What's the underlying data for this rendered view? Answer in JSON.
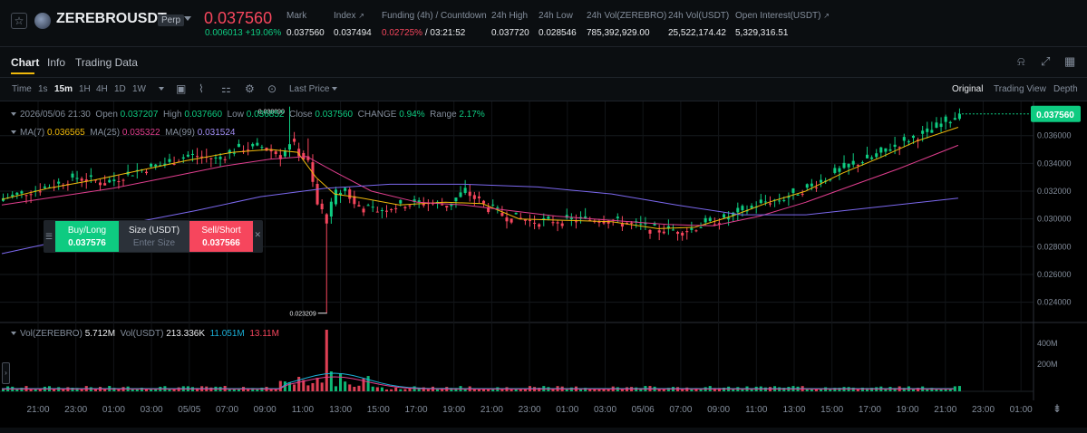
{
  "header": {
    "star_icon": "star-icon",
    "coin_icon": "zerebro-coin-icon",
    "symbol": "ZEREBROUSDT",
    "perp_badge": "Perp",
    "last_price": "0.037560",
    "change": "0.006013 +19.06%",
    "stats": {
      "mark_label": "Mark",
      "mark_value": "0.037560",
      "index_label": "Index",
      "index_value": "0.037494",
      "funding_label": "Funding (4h) / Countdown",
      "funding_rate": "0.02725%",
      "funding_countdown": "/ 03:21:52",
      "high_label": "24h High",
      "high_value": "0.037720",
      "low_label": "24h Low",
      "low_value": "0.028546",
      "vol_coin_label": "24h Vol(ZEREBRO)",
      "vol_coin_value": "785,392,929.00",
      "vol_usdt_label": "24h Vol(USDT)",
      "vol_usdt_value": "25,522,174.42",
      "oi_label": "Open Interest(USDT)",
      "oi_value": "5,329,316.51"
    }
  },
  "tabs": [
    {
      "label": "Chart",
      "active": true
    },
    {
      "label": "Info",
      "active": false
    },
    {
      "label": "Trading Data",
      "active": false
    }
  ],
  "tab_icons": [
    "alert-icon",
    "expand-icon",
    "grid-icon"
  ],
  "toolbar": {
    "intervals": [
      "Time",
      "1s",
      "15m",
      "1H",
      "4H",
      "1D",
      "1W"
    ],
    "active_interval": "15m",
    "price_source": "Last Price",
    "views": [
      "Original",
      "Trading View",
      "Depth"
    ],
    "active_view": "Original"
  },
  "chart_info": {
    "datetime": "2026/05/06 21:30",
    "open_label": "Open",
    "open": "0.037207",
    "high_label": "High",
    "high": "0.037660",
    "low_label": "Low",
    "low": "0.036852",
    "close_label": "Close",
    "close": "0.037560",
    "change_label": "CHANGE",
    "change": "0.94%",
    "range_label": "Range",
    "range": "2.17%"
  },
  "ma": {
    "ma7_label": "MA(7)",
    "ma7": "0.036565",
    "ma25_label": "MA(25)",
    "ma25": "0.035322",
    "ma99_label": "MA(99)",
    "ma99": "0.031524"
  },
  "volume": {
    "label": "Vol(ZEREBRO)",
    "value": "5.712M",
    "usdt_label": "Vol(USDT)",
    "usdt_value": "213.336K",
    "ma1": "11.051M",
    "ma2": "13.11M"
  },
  "order_widget": {
    "buy_label": "Buy/Long",
    "buy_price": "0.037576",
    "size_label": "Size (USDT)",
    "size_placeholder": "Enter Size",
    "sell_label": "Sell/Short",
    "sell_price": "0.037566"
  },
  "chart_data": {
    "type": "candlestick",
    "price_axis": [
      "0.036000",
      "0.034000",
      "0.032000",
      "0.030000",
      "0.028000",
      "0.026000",
      "0.024000"
    ],
    "volume_axis": [
      "400M",
      "200M"
    ],
    "time_axis": [
      "21:00",
      "23:00",
      "01:00",
      "03:00",
      "05/05",
      "07:00",
      "09:00",
      "11:00",
      "13:00",
      "15:00",
      "17:00",
      "19:00",
      "21:00",
      "23:00",
      "01:00",
      "03:00",
      "05/06",
      "07:00",
      "09:00",
      "11:00",
      "13:00",
      "15:00",
      "17:00",
      "19:00",
      "21:00",
      "23:00",
      "01:00"
    ],
    "current_price_label": "0.037560",
    "high_marker": "0.038090",
    "low_marker": "0.023209",
    "ylim": [
      0.0228,
      0.0382
    ],
    "price_path": [
      [
        0,
        0.0315
      ],
      [
        8,
        0.0322
      ],
      [
        16,
        0.033
      ],
      [
        22,
        0.0326
      ],
      [
        28,
        0.0334
      ],
      [
        34,
        0.0339
      ],
      [
        40,
        0.0346
      ],
      [
        46,
        0.0343
      ],
      [
        50,
        0.035
      ],
      [
        56,
        0.0352
      ],
      [
        60,
        0.0346
      ],
      [
        62,
        0.0356
      ],
      [
        66,
        0.034
      ],
      [
        68,
        0.031
      ],
      [
        70,
        0.03
      ],
      [
        72,
        0.0318
      ],
      [
        74,
        0.0322
      ],
      [
        76,
        0.031
      ],
      [
        80,
        0.0306
      ],
      [
        86,
        0.031
      ],
      [
        90,
        0.0312
      ],
      [
        96,
        0.031
      ],
      [
        100,
        0.032
      ],
      [
        104,
        0.031
      ],
      [
        108,
        0.0303
      ],
      [
        114,
        0.0298
      ],
      [
        122,
        0.0299
      ],
      [
        130,
        0.03
      ],
      [
        136,
        0.0296
      ],
      [
        142,
        0.0292
      ],
      [
        148,
        0.0292
      ],
      [
        152,
        0.0297
      ],
      [
        156,
        0.03
      ],
      [
        160,
        0.0306
      ],
      [
        164,
        0.0312
      ],
      [
        168,
        0.0314
      ],
      [
        172,
        0.032
      ],
      [
        176,
        0.0326
      ],
      [
        180,
        0.0333
      ],
      [
        184,
        0.034
      ],
      [
        188,
        0.0344
      ],
      [
        192,
        0.0352
      ],
      [
        196,
        0.0358
      ],
      [
        200,
        0.0362
      ],
      [
        204,
        0.037
      ],
      [
        207,
        0.0376
      ]
    ],
    "ma7_path": [
      [
        0,
        0.0314
      ],
      [
        10,
        0.0322
      ],
      [
        20,
        0.0328
      ],
      [
        30,
        0.0335
      ],
      [
        40,
        0.0342
      ],
      [
        50,
        0.0348
      ],
      [
        58,
        0.035
      ],
      [
        64,
        0.0348
      ],
      [
        68,
        0.033
      ],
      [
        72,
        0.0318
      ],
      [
        78,
        0.0315
      ],
      [
        86,
        0.031
      ],
      [
        96,
        0.0312
      ],
      [
        104,
        0.0311
      ],
      [
        112,
        0.03
      ],
      [
        122,
        0.0299
      ],
      [
        132,
        0.0298
      ],
      [
        142,
        0.0293
      ],
      [
        150,
        0.0294
      ],
      [
        158,
        0.0302
      ],
      [
        166,
        0.0312
      ],
      [
        174,
        0.032
      ],
      [
        182,
        0.0333
      ],
      [
        190,
        0.0344
      ],
      [
        198,
        0.0356
      ],
      [
        207,
        0.0366
      ]
    ],
    "ma25_path": [
      [
        0,
        0.031
      ],
      [
        12,
        0.0316
      ],
      [
        24,
        0.0322
      ],
      [
        36,
        0.033
      ],
      [
        48,
        0.0338
      ],
      [
        58,
        0.0343
      ],
      [
        66,
        0.0345
      ],
      [
        72,
        0.0334
      ],
      [
        80,
        0.032
      ],
      [
        90,
        0.0312
      ],
      [
        100,
        0.031
      ],
      [
        110,
        0.0306
      ],
      [
        120,
        0.0302
      ],
      [
        132,
        0.0299
      ],
      [
        144,
        0.0296
      ],
      [
        154,
        0.0295
      ],
      [
        164,
        0.0302
      ],
      [
        174,
        0.0312
      ],
      [
        184,
        0.0324
      ],
      [
        194,
        0.0336
      ],
      [
        207,
        0.0353
      ]
    ],
    "ma99_path": [
      [
        0,
        0.0275
      ],
      [
        14,
        0.0285
      ],
      [
        28,
        0.0297
      ],
      [
        42,
        0.0306
      ],
      [
        56,
        0.0316
      ],
      [
        70,
        0.0322
      ],
      [
        84,
        0.0325
      ],
      [
        100,
        0.0325
      ],
      [
        116,
        0.0323
      ],
      [
        132,
        0.0318
      ],
      [
        146,
        0.031
      ],
      [
        160,
        0.0303
      ],
      [
        174,
        0.0303
      ],
      [
        188,
        0.0308
      ],
      [
        207,
        0.0315
      ]
    ]
  }
}
